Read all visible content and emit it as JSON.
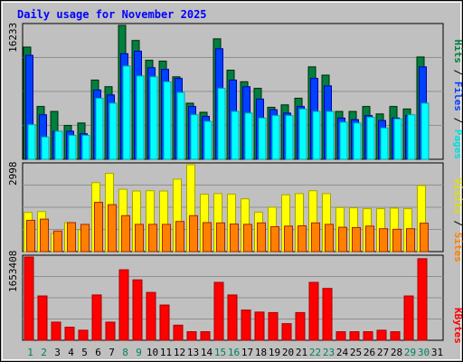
{
  "chart_data": [
    {
      "type": "bar",
      "title": "Daily usage for November 2025",
      "categories": [
        "1",
        "2",
        "3",
        "4",
        "5",
        "6",
        "7",
        "8",
        "9",
        "10",
        "11",
        "12",
        "13",
        "14",
        "15",
        "16",
        "17",
        "18",
        "19",
        "20",
        "21",
        "22",
        "23",
        "24",
        "25",
        "26",
        "27",
        "28",
        "29",
        "30",
        "31"
      ],
      "weekend_categories": [
        "1",
        "2",
        "8",
        "9",
        "15",
        "16",
        "22",
        "23",
        "29",
        "30"
      ],
      "ymax_label": "16233",
      "ylim": [
        0,
        16233
      ],
      "legend": [
        "Hits",
        "Files",
        "Pages"
      ],
      "series": [
        {
          "name": "Hits",
          "values": [
            13600,
            6400,
            5800,
            4100,
            4400,
            9600,
            8800,
            16233,
            14400,
            12000,
            11900,
            10000,
            6800,
            5700,
            14600,
            10800,
            9400,
            8600,
            6300,
            6600,
            7400,
            11200,
            10200,
            5800,
            5800,
            6400,
            5500,
            6400,
            6100,
            12400,
            null
          ]
        },
        {
          "name": "Files",
          "values": [
            12600,
            5400,
            3400,
            3400,
            3100,
            8400,
            7800,
            12800,
            13100,
            11100,
            10900,
            9800,
            6400,
            5200,
            13400,
            9600,
            8800,
            7300,
            6000,
            5600,
            6400,
            9800,
            8900,
            5000,
            4800,
            5300,
            4700,
            5000,
            5300,
            11200,
            null
          ]
        },
        {
          "name": "Pages",
          "values": [
            4200,
            2700,
            3400,
            2900,
            2900,
            7400,
            6800,
            11300,
            10100,
            10000,
            9400,
            8100,
            5400,
            4600,
            8600,
            5800,
            5600,
            5000,
            5300,
            5300,
            6100,
            5800,
            5800,
            4500,
            4400,
            5100,
            3800,
            4900,
            5400,
            6800,
            null
          ]
        }
      ]
    },
    {
      "type": "bar",
      "categories": [
        "1",
        "2",
        "3",
        "4",
        "5",
        "6",
        "7",
        "8",
        "9",
        "10",
        "11",
        "12",
        "13",
        "14",
        "15",
        "16",
        "17",
        "18",
        "19",
        "20",
        "21",
        "22",
        "23",
        "24",
        "25",
        "26",
        "27",
        "28",
        "29",
        "30",
        "31"
      ],
      "ymax_label": "2998",
      "ylim": [
        0,
        2998
      ],
      "legend": [
        "Visits",
        "Sites"
      ],
      "series": [
        {
          "name": "Visits",
          "values": [
            1350,
            1380,
            620,
            1000,
            750,
            2380,
            2700,
            2150,
            2090,
            2100,
            2090,
            2500,
            2998,
            1980,
            2000,
            1980,
            1820,
            1360,
            1530,
            1960,
            2000,
            2100,
            2000,
            1520,
            1510,
            1480,
            1480,
            1500,
            1480,
            2280,
            null
          ]
        },
        {
          "name": "Sites",
          "values": [
            1080,
            1120,
            710,
            1000,
            940,
            1700,
            1620,
            1240,
            940,
            940,
            940,
            1040,
            1240,
            1000,
            990,
            950,
            940,
            990,
            860,
            880,
            890,
            990,
            940,
            840,
            830,
            880,
            790,
            770,
            790,
            980,
            null
          ]
        }
      ]
    },
    {
      "type": "bar",
      "categories": [
        "1",
        "2",
        "3",
        "4",
        "5",
        "6",
        "7",
        "8",
        "9",
        "10",
        "11",
        "12",
        "13",
        "14",
        "15",
        "16",
        "17",
        "18",
        "19",
        "20",
        "21",
        "22",
        "23",
        "24",
        "25",
        "26",
        "27",
        "28",
        "29",
        "30",
        "31"
      ],
      "ymax_label": "1653408",
      "ylim": [
        0,
        1653408
      ],
      "legend": [
        "KBytes"
      ],
      "series": [
        {
          "name": "KBytes",
          "values": [
            1653408,
            880000,
            360000,
            260000,
            200000,
            900000,
            360000,
            1400000,
            1200000,
            950000,
            700000,
            300000,
            170000,
            170000,
            1150000,
            900000,
            600000,
            560000,
            550000,
            330000,
            550000,
            1150000,
            1030000,
            170000,
            170000,
            170000,
            200000,
            170000,
            880000,
            1620000,
            null
          ]
        }
      ]
    }
  ],
  "colors": {
    "hits": "#008040",
    "files": "#0040ff",
    "pages": "#00ffff",
    "visits": "#ffff00",
    "sites": "#ff8000",
    "kbytes": "#ff0000",
    "title": "#0000ff",
    "weekend_day": "#00805c",
    "weekday_day": "#000000",
    "plot_bg": "#c0c0c0",
    "frame": "#000000"
  }
}
